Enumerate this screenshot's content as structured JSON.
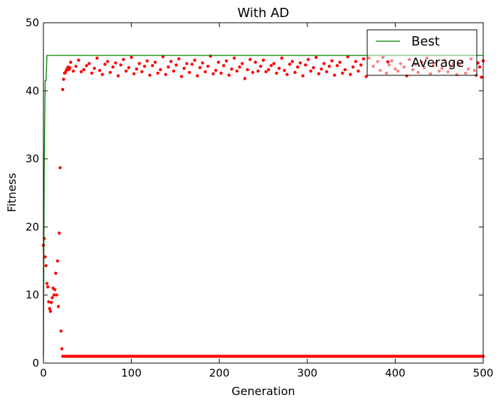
{
  "chart_data": {
    "type": "scatter",
    "title": "With AD",
    "xlabel": "Generation",
    "ylabel": "Fitness",
    "xlim": [
      0,
      500
    ],
    "ylim": [
      0,
      50
    ],
    "xticks": [
      0,
      100,
      200,
      300,
      400,
      500
    ],
    "yticks": [
      0,
      10,
      20,
      30,
      40,
      50
    ],
    "grid": false,
    "legend": {
      "placement": "top-right",
      "entries": [
        "Best",
        "Average"
      ]
    },
    "colors": {
      "best": "#008000",
      "average": "#ff0000",
      "frame": "#000000"
    },
    "series": [
      {
        "name": "Best",
        "kind": "line",
        "x": [
          0,
          1,
          2,
          3,
          4,
          5,
          500
        ],
        "y": [
          1.0,
          30.0,
          41.5,
          41.5,
          45.2,
          45.2,
          45.2
        ]
      },
      {
        "name": "Average",
        "kind": "scatter",
        "early": {
          "x": [
            0,
            1,
            2,
            3,
            4,
            5,
            6,
            7,
            8,
            9,
            10,
            11,
            12,
            13,
            14,
            15,
            16,
            17,
            18,
            19,
            20,
            21,
            22,
            23,
            24,
            25,
            26,
            27,
            28,
            29,
            30
          ],
          "y": [
            17.3,
            18.3,
            15.6,
            14.3,
            11.7,
            11.2,
            9.0,
            8.0,
            7.6,
            8.9,
            9.6,
            11.0,
            10.0,
            10.8,
            13.2,
            10.0,
            15.0,
            8.3,
            19.1,
            28.7,
            4.7,
            2.1,
            40.2,
            41.7,
            42.6,
            42.7,
            43.0,
            43.2,
            43.5,
            43.1,
            43.4
          ]
        },
        "plateau": {
          "start": 31,
          "end": 500,
          "values": [
            44.2,
            42.9,
            43.6,
            44.5,
            42.8,
            43.1,
            43.7,
            44.0,
            42.6,
            43.3,
            44.8,
            43.0,
            42.4,
            43.9,
            44.3,
            42.7,
            43.5,
            44.1,
            42.2,
            43.8,
            44.6,
            42.9,
            43.4,
            44.9,
            42.5,
            43.2,
            44.0,
            42.8,
            43.6,
            44.4,
            42.3,
            43.7,
            44.2,
            42.6,
            43.1,
            45.0,
            42.4,
            43.5,
            44.3,
            42.9,
            43.8,
            44.7,
            42.1,
            43.3,
            44.0,
            42.7,
            43.9,
            44.5,
            42.2,
            43.4,
            44.1,
            42.8,
            43.6,
            45.1,
            42.5,
            43.0,
            44.2,
            42.6,
            43.7,
            44.4,
            42.3,
            43.2,
            44.8,
            42.9,
            43.5,
            44.0,
            41.8,
            43.1,
            44.6,
            42.7
          ],
          "tail_x": [
            370,
            375,
            380,
            383,
            386,
            390,
            393,
            396,
            400,
            403,
            406,
            410,
            413,
            416,
            420,
            423,
            426,
            430,
            433,
            436,
            440,
            443,
            446,
            450,
            453,
            456,
            460,
            463,
            466,
            470,
            473,
            476,
            480,
            483,
            486,
            490,
            492,
            494,
            496,
            498,
            500
          ],
          "tail_y": [
            44.8,
            43.6,
            44.3,
            43.0,
            44.9,
            42.6,
            43.8,
            44.4,
            43.2,
            42.9,
            44.0,
            43.5,
            42.2,
            44.6,
            43.1,
            43.9,
            42.7,
            44.2,
            43.4,
            44.8,
            42.5,
            43.7,
            44.1,
            42.9,
            43.3,
            44.5,
            42.8,
            43.6,
            44.0,
            42.4,
            43.9,
            44.3,
            42.6,
            43.2,
            44.7,
            43.0,
            42.3,
            44.1,
            43.5,
            42.0,
            44.4
          ]
        },
        "baseline": {
          "start": 22,
          "end": 500,
          "step": 2,
          "value": 1.0
        }
      }
    ]
  }
}
